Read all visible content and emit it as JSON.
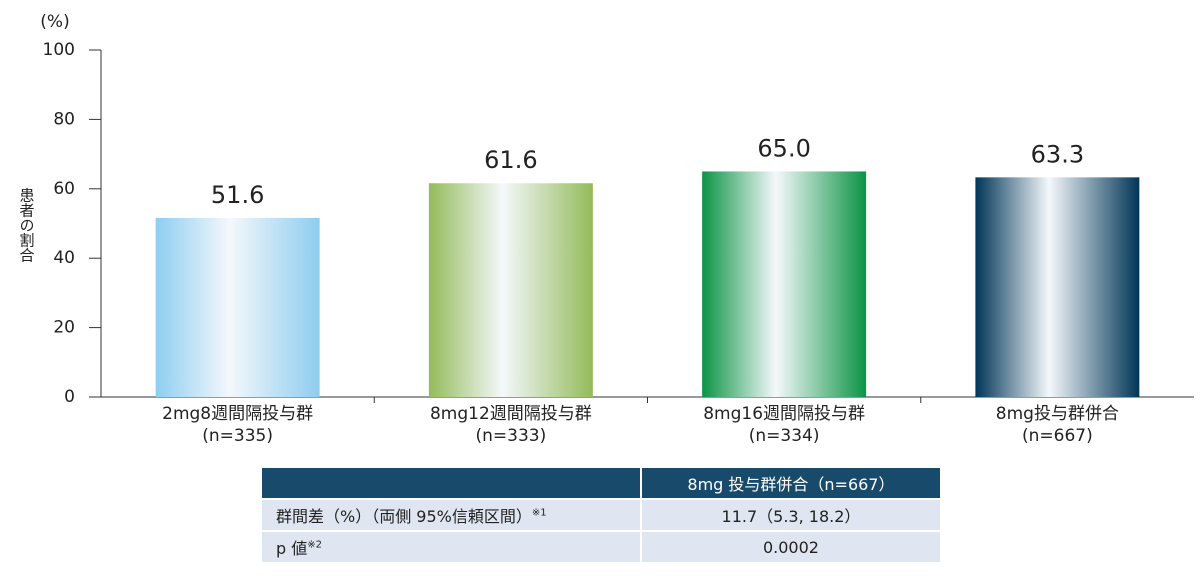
{
  "chart_data": {
    "type": "bar",
    "y_label": "患者の割合",
    "y_unit": "(%)",
    "categories": [
      "2mg8週間隔投与群",
      "8mg12週間隔投与群",
      "8mg16週間隔投与群",
      "8mg投与群併合"
    ],
    "category_sublabels": [
      "(n=335)",
      "(n=333)",
      "(n=334)",
      "(n=667)"
    ],
    "values": [
      51.6,
      61.6,
      65.0,
      63.3
    ],
    "value_labels": [
      "51.6",
      "61.6",
      "65.0",
      "63.3"
    ],
    "colors": [
      "#8ecdf0",
      "#93bb5a",
      "#0b9444",
      "#003558"
    ],
    "ylim": [
      0,
      100
    ],
    "yticks": [
      0,
      20,
      40,
      60,
      80,
      100
    ]
  },
  "table": {
    "header": "8mg 投与群併合（n=667）",
    "rows": [
      {
        "label": "群間差（%）（両側 95%信頼区間）",
        "note": "※1",
        "value": "11.7（5.3, 18.2）"
      },
      {
        "label": "p 値",
        "note": "※2",
        "value": "0.0002"
      }
    ]
  }
}
